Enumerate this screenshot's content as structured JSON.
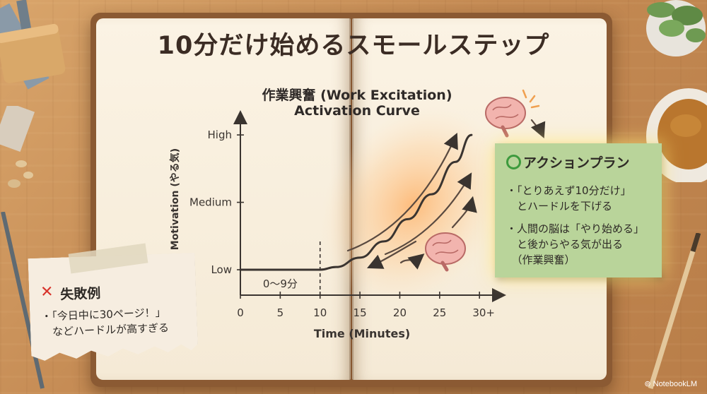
{
  "title": "10分だけ始めるスモールステップ",
  "chart": {
    "title_line1": "作業興奮 (Work Excitation)",
    "title_line2": "Activation Curve"
  },
  "chart_data": {
    "type": "line",
    "title": "作業興奮 (Work Excitation) Activation Curve",
    "xlabel": "Time (Minutes)",
    "ylabel": "Motivation (やる気)",
    "x_ticks": [
      "0",
      "5",
      "10",
      "15",
      "20",
      "25",
      "30+"
    ],
    "y_ticks": [
      "Low",
      "Medium",
      "High"
    ],
    "xlim": [
      0,
      33
    ],
    "ylim": [
      0,
      2.2
    ],
    "series": [
      {
        "x": [
          0,
          5,
          10,
          12,
          15,
          18,
          21,
          24,
          27,
          29
        ],
        "y": [
          0,
          0,
          0,
          0.04,
          0.18,
          0.42,
          0.75,
          1.12,
          1.6,
          2.0
        ]
      }
    ],
    "annotations": [
      {
        "text": "0〜9分",
        "x": 2.5,
        "y": -0.2
      }
    ],
    "marker_x": 10
  },
  "action_plan": {
    "title": "アクションプラン",
    "items": [
      [
        "・「とりあえず10分だけ」",
        "　とハードルを下げる"
      ],
      [
        "・人間の脳は「やり始める」",
        "　と後からやる気が出る",
        "　（作業興奮）"
      ]
    ],
    "icon": "circle-ok-icon",
    "accent": "#3d9a3d"
  },
  "failure": {
    "mark": "✕",
    "title": "失敗例",
    "lines": [
      "・「今日中に30ページ！」",
      "　などハードルが高すぎる"
    ],
    "accent": "#d8322a"
  },
  "brand": "NotebookLM"
}
